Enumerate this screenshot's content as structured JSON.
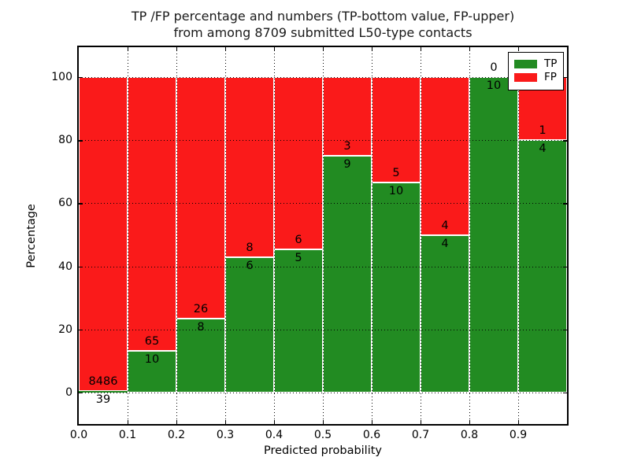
{
  "figure": {
    "title_line1": "TP /FP percentage and numbers (TP-bottom value, FP-upper)",
    "title_line2": "from among 8709 submitted L50-type contacts"
  },
  "chart_data": {
    "type": "bar",
    "stacked": true,
    "normalized": "each bar scaled to 100%, stacked TP (bottom) + FP (top)",
    "title": "TP /FP percentage and numbers (TP-bottom value, FP-upper) from among 8709 submitted L50-type contacts",
    "xlabel": "Predicted probability",
    "ylabel": "Percentage",
    "total_contacts": 8709,
    "bin_edges": [
      0.0,
      0.1,
      0.2,
      0.3,
      0.4,
      0.5,
      0.6,
      0.7,
      0.8,
      0.9,
      1.0
    ],
    "categories": [
      "0.0-0.1",
      "0.1-0.2",
      "0.2-0.3",
      "0.3-0.4",
      "0.4-0.5",
      "0.5-0.6",
      "0.6-0.7",
      "0.7-0.8",
      "0.8-0.9",
      "0.9-1.0"
    ],
    "series": [
      {
        "name": "TP",
        "color": "#228B22",
        "counts": [
          39,
          10,
          8,
          6,
          5,
          9,
          10,
          4,
          10,
          4
        ]
      },
      {
        "name": "FP",
        "color": "#FA1A1A",
        "counts": [
          8486,
          65,
          26,
          8,
          6,
          3,
          5,
          4,
          0,
          1
        ]
      }
    ],
    "tp_percent": [
      0.46,
      13.33,
      23.53,
      42.86,
      45.45,
      75.0,
      66.67,
      50.0,
      100.0,
      80.0
    ],
    "x_tick_labels": [
      "0.0",
      "0.1",
      "0.2",
      "0.3",
      "0.4",
      "0.5",
      "0.6",
      "0.7",
      "0.8",
      "0.9"
    ],
    "y_ticks": [
      0,
      20,
      40,
      60,
      80,
      100
    ],
    "xlim": [
      0.0,
      1.0
    ],
    "ylim": [
      -10,
      110
    ],
    "grid": "dotted black, both axes",
    "legend": {
      "position": "upper-right",
      "entries": [
        {
          "label": "TP",
          "color": "#228B22"
        },
        {
          "label": "FP",
          "color": "#FA1A1A"
        }
      ]
    }
  }
}
